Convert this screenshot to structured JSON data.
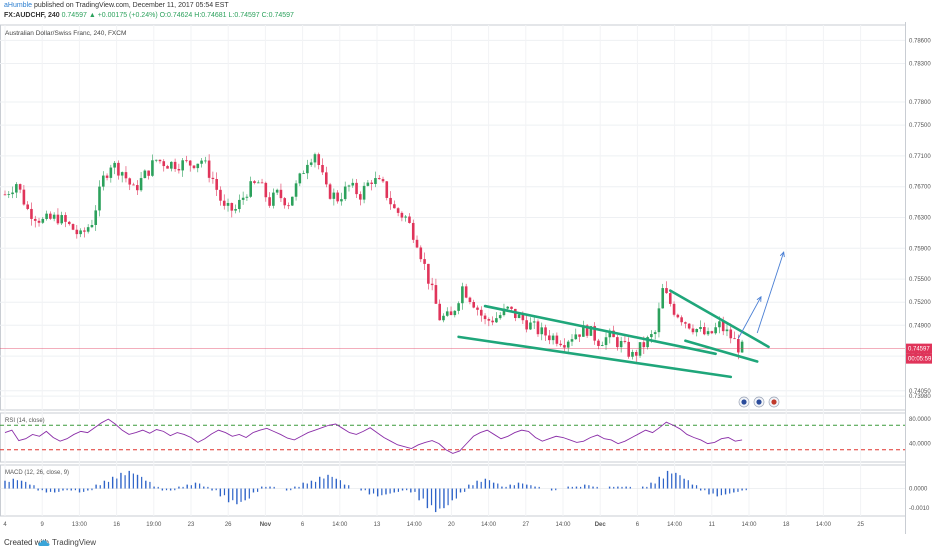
{
  "header": {
    "publisher": "aHumble",
    "published_text": "published on TradingView.com, December 11, 2017 05:54 EST",
    "symbol": "FX:AUDCHF, 240",
    "last": "0.74597",
    "change": "▲ +0.00175 (+0.24%)",
    "ohlc": [
      "O:0.74624",
      "H:0.74681",
      "L:0.74597",
      "C:0.74597"
    ]
  },
  "footer": {
    "created_with": "Created with",
    "brand": "TradingView"
  },
  "colors": {
    "up": "#2ca15c",
    "down": "#e0345a",
    "trendline": "#1fa67a",
    "arrow": "#4a7fd4",
    "rsi": "#8b2fa8",
    "macd": "#2e63c8",
    "guide_green": "#3a9a3a",
    "guide_red": "#e0342f",
    "price_line": "#e0345a"
  },
  "chart_data": [
    {
      "type": "candlestick",
      "title": "Australian Dollar/Swiss Franc, 240, FXCM",
      "x_tick_labels": [
        "4",
        "9",
        "13:00",
        "16",
        "19:00",
        "23",
        "26",
        "Nov",
        "6",
        "14:00",
        "13",
        "14:00",
        "20",
        "14:00",
        "27",
        "14:00",
        "Dec",
        "6",
        "14:00",
        "11",
        "14:00",
        "18",
        "14:00",
        "25"
      ],
      "y_tick_labels": [
        "0.78600",
        "0.78300",
        "0.77800",
        "0.77500",
        "0.77100",
        "0.76700",
        "0.76300",
        "0.75900",
        "0.75500",
        "0.75200",
        "0.74900",
        "0.74500",
        "0.74050",
        "0.73980"
      ],
      "ylim": [
        0.738,
        0.788
      ],
      "last_price_label": "0.74597",
      "countdown_label": "00:05:59",
      "close_path": [
        {
          "x": 0,
          "y": 0.766
        },
        {
          "x": 3,
          "y": 0.7675
        },
        {
          "x": 6,
          "y": 0.764
        },
        {
          "x": 10,
          "y": 0.7625
        },
        {
          "x": 14,
          "y": 0.763
        },
        {
          "x": 18,
          "y": 0.7615
        },
        {
          "x": 20,
          "y": 0.7605
        },
        {
          "x": 23,
          "y": 0.7625
        },
        {
          "x": 26,
          "y": 0.768
        },
        {
          "x": 28,
          "y": 0.77
        },
        {
          "x": 31,
          "y": 0.769
        },
        {
          "x": 34,
          "y": 0.7665
        },
        {
          "x": 37,
          "y": 0.7685
        },
        {
          "x": 40,
          "y": 0.7705
        },
        {
          "x": 43,
          "y": 0.77
        },
        {
          "x": 46,
          "y": 0.77
        },
        {
          "x": 49,
          "y": 0.77
        },
        {
          "x": 52,
          "y": 0.7705
        },
        {
          "x": 55,
          "y": 0.768
        },
        {
          "x": 58,
          "y": 0.764
        },
        {
          "x": 61,
          "y": 0.764
        },
        {
          "x": 64,
          "y": 0.7665
        },
        {
          "x": 67,
          "y": 0.7675
        },
        {
          "x": 70,
          "y": 0.765
        },
        {
          "x": 72,
          "y": 0.766
        },
        {
          "x": 75,
          "y": 0.765
        },
        {
          "x": 78,
          "y": 0.768
        },
        {
          "x": 80,
          "y": 0.7705
        },
        {
          "x": 82,
          "y": 0.7715
        },
        {
          "x": 85,
          "y": 0.7665
        },
        {
          "x": 88,
          "y": 0.7655
        },
        {
          "x": 91,
          "y": 0.767
        },
        {
          "x": 94,
          "y": 0.766
        },
        {
          "x": 97,
          "y": 0.768
        },
        {
          "x": 100,
          "y": 0.767
        },
        {
          "x": 103,
          "y": 0.764
        },
        {
          "x": 106,
          "y": 0.763
        },
        {
          "x": 109,
          "y": 0.76
        },
        {
          "x": 112,
          "y": 0.755
        },
        {
          "x": 115,
          "y": 0.75
        },
        {
          "x": 118,
          "y": 0.75
        },
        {
          "x": 121,
          "y": 0.754
        },
        {
          "x": 124,
          "y": 0.752
        },
        {
          "x": 127,
          "y": 0.7495
        },
        {
          "x": 130,
          "y": 0.75
        },
        {
          "x": 133,
          "y": 0.751
        },
        {
          "x": 136,
          "y": 0.75
        },
        {
          "x": 139,
          "y": 0.749
        },
        {
          "x": 142,
          "y": 0.748
        },
        {
          "x": 145,
          "y": 0.7475
        },
        {
          "x": 148,
          "y": 0.747
        },
        {
          "x": 151,
          "y": 0.748
        },
        {
          "x": 154,
          "y": 0.7485
        },
        {
          "x": 157,
          "y": 0.747
        },
        {
          "x": 160,
          "y": 0.7475
        },
        {
          "x": 163,
          "y": 0.7465
        },
        {
          "x": 166,
          "y": 0.745
        },
        {
          "x": 169,
          "y": 0.7465
        },
        {
          "x": 172,
          "y": 0.748
        },
        {
          "x": 174,
          "y": 0.7535
        },
        {
          "x": 177,
          "y": 0.751
        },
        {
          "x": 180,
          "y": 0.7495
        },
        {
          "x": 183,
          "y": 0.7485
        },
        {
          "x": 186,
          "y": 0.7475
        },
        {
          "x": 189,
          "y": 0.749
        },
        {
          "x": 192,
          "y": 0.7475
        },
        {
          "x": 194,
          "y": 0.7462
        },
        {
          "x": 195,
          "y": 0.746
        }
      ],
      "drawings": {
        "trendlines": [
          {
            "from": [
              127,
              0.7515
            ],
            "to": [
              188,
              0.7453
            ]
          },
          {
            "from": [
              120,
              0.7475
            ],
            "to": [
              192,
              0.7423
            ]
          },
          {
            "from": [
              176,
              0.7535
            ],
            "to": [
              202,
              0.7462
            ]
          },
          {
            "from": [
              180,
              0.747
            ],
            "to": [
              199,
              0.7443
            ]
          }
        ],
        "arrows": [
          {
            "from": [
              194,
              0.7473
            ],
            "to": [
              200,
              0.7527
            ]
          },
          {
            "from": [
              199,
              0.748
            ],
            "to": [
              206,
              0.7585
            ]
          }
        ]
      }
    },
    {
      "type": "line",
      "title": "RSI (14, close)",
      "y_tick_labels": [
        "80.0000",
        "40.0000"
      ],
      "ylim": [
        10,
        90
      ],
      "guides": [
        70,
        30
      ],
      "values": [
        58,
        62,
        45,
        48,
        55,
        52,
        60,
        50,
        44,
        48,
        55,
        60,
        58,
        66,
        74,
        80,
        72,
        62,
        55,
        58,
        62,
        57,
        63,
        60,
        53,
        58,
        55,
        50,
        42,
        48,
        56,
        62,
        58,
        52,
        55,
        50,
        58,
        62,
        65,
        60,
        55,
        49,
        46,
        52,
        58,
        62,
        66,
        70,
        72,
        65,
        58,
        55,
        60,
        66,
        58,
        50,
        44,
        38,
        35,
        32,
        38,
        42,
        45,
        40,
        30,
        24,
        28,
        40,
        52,
        58,
        62,
        55,
        48,
        52,
        58,
        62,
        60,
        50,
        44,
        48,
        52,
        50,
        46,
        42,
        44,
        50,
        54,
        48,
        46,
        40,
        44,
        50,
        56,
        62,
        58,
        66,
        75,
        70,
        64,
        55,
        50,
        46,
        40,
        42,
        48,
        50,
        44,
        46
      ],
      "label": "RSI (14, close)"
    },
    {
      "type": "bar",
      "title": "MACD (12, 26, close, 9)",
      "y_tick_labels": [
        "0.0000",
        "-0.0010"
      ],
      "ylim": [
        -0.0014,
        0.0012
      ],
      "values": [
        0.0004,
        0.0005,
        0.0004,
        0.0002,
        -0.0001,
        -0.0002,
        -0.0002,
        -0.0001,
        -0.0001,
        -0.0002,
        -0.0001,
        0.0002,
        0.0004,
        0.0006,
        0.0008,
        0.0009,
        0.0007,
        0.0004,
        0.0001,
        -0.0001,
        -0.0001,
        0.0001,
        0.0002,
        0.0003,
        0.0001,
        -0.0001,
        -0.0004,
        -0.0007,
        -0.0008,
        -0.0006,
        -0.0002,
        0.0001,
        0.0001,
        0.0,
        -0.0001,
        0.0001,
        0.0003,
        0.0004,
        0.0006,
        0.0007,
        0.0005,
        0.0002,
        0.0,
        -0.0001,
        -0.0003,
        -0.0004,
        -0.0003,
        -0.0002,
        -0.0001,
        -0.0002,
        -0.0006,
        -0.001,
        -0.0012,
        -0.001,
        -0.0006,
        -0.0002,
        0.0002,
        0.0004,
        0.0005,
        0.0003,
        0.0001,
        0.0002,
        0.0003,
        0.0002,
        0.0001,
        0.0,
        -0.0001,
        0.0,
        0.0001,
        0.0001,
        0.0002,
        0.0001,
        0.0,
        0.0001,
        0.0001,
        0.0001,
        0.0,
        0.0001,
        0.0003,
        0.0006,
        0.0009,
        0.0008,
        0.0005,
        0.0002,
        -0.0001,
        -0.0003,
        -0.0004,
        -0.0003,
        -0.0002,
        -0.0001
      ],
      "label": "MACD (12, 26, close, 9)"
    }
  ]
}
